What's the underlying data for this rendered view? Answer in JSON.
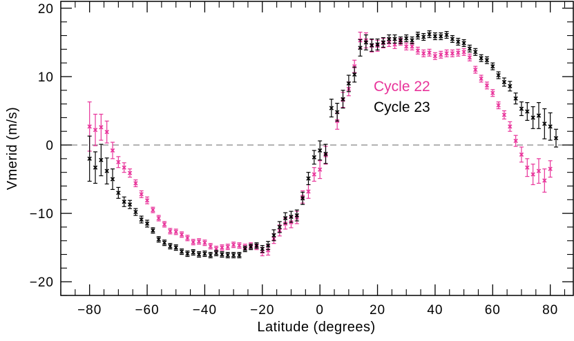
{
  "chart_data": {
    "type": "scatter",
    "xlabel": "Latitude  (degrees)",
    "ylabel": "Vmerid  (m/s)",
    "xlim": [
      -90,
      88
    ],
    "ylim": [
      -22,
      21
    ],
    "xticks": [
      -80,
      -60,
      -40,
      -20,
      0,
      20,
      40,
      60,
      80
    ],
    "yticks": [
      -20,
      -10,
      0,
      10,
      20
    ],
    "xtick_labels": [
      "−80",
      "−60",
      "−40",
      "−20",
      "0",
      "20",
      "40",
      "60",
      "80"
    ],
    "ytick_labels": [
      "−20",
      "−10",
      "0",
      "10",
      "20"
    ],
    "reference_line": {
      "y": 0,
      "style": "dashed"
    },
    "colors": {
      "cycle22": "#e8339a",
      "cycle23": "#000000",
      "axis": "#000000",
      "zero_line": "#777777"
    },
    "series": [
      {
        "name": "Cycle 22",
        "color": "#e8339a",
        "points": [
          [
            -80,
            2.7,
            3.6
          ],
          [
            -78,
            2.2,
            2.3
          ],
          [
            -76,
            2.6,
            1.9
          ],
          [
            -74,
            1.9,
            1.6
          ],
          [
            -72,
            -0.8,
            1.2
          ],
          [
            -70,
            -2.5,
            0.8
          ],
          [
            -68,
            -3.3,
            0.7
          ],
          [
            -66,
            -4.1,
            0.6
          ],
          [
            -64,
            -5.6,
            0.5
          ],
          [
            -62,
            -7.2,
            0.5
          ],
          [
            -60,
            -8.1,
            0.5
          ],
          [
            -58,
            -9.5,
            0.4
          ],
          [
            -56,
            -10.7,
            0.4
          ],
          [
            -54,
            -11.6,
            0.4
          ],
          [
            -52,
            -12.6,
            0.4
          ],
          [
            -50,
            -12.7,
            0.4
          ],
          [
            -48,
            -13.1,
            0.4
          ],
          [
            -46,
            -13.6,
            0.4
          ],
          [
            -44,
            -14.2,
            0.4
          ],
          [
            -42,
            -14.1,
            0.4
          ],
          [
            -40,
            -14.3,
            0.4
          ],
          [
            -38,
            -14.8,
            0.4
          ],
          [
            -36,
            -15.2,
            0.4
          ],
          [
            -34,
            -15.0,
            0.4
          ],
          [
            -32,
            -14.9,
            0.4
          ],
          [
            -30,
            -14.6,
            0.4
          ],
          [
            -28,
            -14.7,
            0.4
          ],
          [
            -26,
            -14.9,
            0.4
          ],
          [
            -24,
            -14.7,
            0.4
          ],
          [
            -22,
            -14.9,
            0.4
          ],
          [
            -20,
            -15.6,
            0.6
          ],
          [
            -18,
            -15.4,
            0.7
          ],
          [
            -16,
            -13.7,
            0.7
          ],
          [
            -14,
            -12.5,
            0.8
          ],
          [
            -12,
            -11.5,
            0.8
          ],
          [
            -10,
            -11.3,
            0.8
          ],
          [
            -8,
            -10.6,
            0.9
          ],
          [
            -6,
            -7.6,
            0.9
          ],
          [
            -4,
            -6.8,
            1.0
          ],
          [
            -2,
            -4.3,
            1.0
          ],
          [
            0,
            -3.6,
            1.3
          ],
          [
            2,
            -1.5,
            1.3
          ],
          [
            6,
            3.5,
            1.2
          ],
          [
            8,
            6.6,
            1.1
          ],
          [
            10,
            8.2,
            1.0
          ],
          [
            12,
            11.5,
            0.9
          ],
          [
            14,
            15.3,
            1.2
          ],
          [
            16,
            15.3,
            1.1
          ],
          [
            18,
            14.5,
            0.9
          ],
          [
            20,
            14.5,
            0.8
          ],
          [
            22,
            14.9,
            0.7
          ],
          [
            24,
            15.0,
            0.6
          ],
          [
            26,
            14.7,
            0.6
          ],
          [
            28,
            15.1,
            0.5
          ],
          [
            30,
            14.4,
            0.5
          ],
          [
            32,
            14.4,
            0.5
          ],
          [
            34,
            13.8,
            0.5
          ],
          [
            36,
            13.4,
            0.5
          ],
          [
            38,
            13.5,
            0.5
          ],
          [
            40,
            13.0,
            0.5
          ],
          [
            42,
            13.2,
            0.5
          ],
          [
            44,
            13.4,
            0.5
          ],
          [
            46,
            13.4,
            0.5
          ],
          [
            48,
            13.5,
            0.5
          ],
          [
            50,
            13.6,
            0.5
          ],
          [
            52,
            12.8,
            0.5
          ],
          [
            54,
            11.0,
            0.5
          ],
          [
            56,
            9.7,
            0.5
          ],
          [
            58,
            8.7,
            0.5
          ],
          [
            60,
            7.6,
            0.5
          ],
          [
            62,
            5.8,
            0.5
          ],
          [
            64,
            4.4,
            0.6
          ],
          [
            66,
            2.7,
            0.7
          ],
          [
            68,
            0.6,
            0.8
          ],
          [
            70,
            -1.4,
            1.1
          ],
          [
            72,
            -3.3,
            1.3
          ],
          [
            74,
            -4.3,
            1.5
          ],
          [
            76,
            -3.8,
            1.8
          ],
          [
            78,
            -5.2,
            1.7
          ],
          [
            80,
            -3.5,
            1.2
          ]
        ]
      },
      {
        "name": "Cycle 23",
        "color": "#000000",
        "points": [
          [
            -80,
            -2.0,
            3.3
          ],
          [
            -78,
            -3.3,
            2.3
          ],
          [
            -76,
            -2.2,
            2.3
          ],
          [
            -74,
            -3.8,
            1.9
          ],
          [
            -72,
            -5.0,
            1.5
          ],
          [
            -70,
            -7.0,
            0.8
          ],
          [
            -68,
            -8.3,
            0.7
          ],
          [
            -66,
            -8.7,
            0.6
          ],
          [
            -64,
            -9.8,
            0.5
          ],
          [
            -62,
            -10.9,
            0.5
          ],
          [
            -60,
            -11.5,
            0.5
          ],
          [
            -58,
            -12.5,
            0.4
          ],
          [
            -56,
            -13.8,
            0.4
          ],
          [
            -54,
            -14.3,
            0.4
          ],
          [
            -52,
            -14.8,
            0.4
          ],
          [
            -50,
            -15.0,
            0.4
          ],
          [
            -48,
            -15.6,
            0.4
          ],
          [
            -46,
            -15.9,
            0.4
          ],
          [
            -44,
            -15.7,
            0.4
          ],
          [
            -42,
            -16.0,
            0.4
          ],
          [
            -40,
            -15.9,
            0.4
          ],
          [
            -38,
            -16.1,
            0.4
          ],
          [
            -36,
            -15.8,
            0.4
          ],
          [
            -34,
            -16.0,
            0.4
          ],
          [
            -32,
            -16.1,
            0.4
          ],
          [
            -30,
            -16.1,
            0.4
          ],
          [
            -28,
            -16.1,
            0.4
          ],
          [
            -26,
            -15.2,
            0.4
          ],
          [
            -24,
            -14.9,
            0.4
          ],
          [
            -22,
            -14.7,
            0.4
          ],
          [
            -20,
            -15.2,
            0.5
          ],
          [
            -18,
            -14.7,
            0.6
          ],
          [
            -16,
            -13.2,
            0.8
          ],
          [
            -14,
            -12.0,
            0.8
          ],
          [
            -12,
            -10.7,
            0.8
          ],
          [
            -10,
            -10.5,
            0.8
          ],
          [
            -8,
            -10.3,
            0.8
          ],
          [
            -6,
            -7.8,
            0.9
          ],
          [
            -4,
            -4.9,
            0.9
          ],
          [
            -2,
            -1.8,
            1.0
          ],
          [
            0,
            -0.8,
            1.4
          ],
          [
            2,
            -1.3,
            1.4
          ],
          [
            4,
            5.4,
            1.3
          ],
          [
            6,
            4.8,
            1.3
          ],
          [
            8,
            6.7,
            1.3
          ],
          [
            10,
            9.0,
            1.2
          ],
          [
            12,
            10.3,
            1.1
          ],
          [
            14,
            14.2,
            1.2
          ],
          [
            16,
            15.0,
            1.1
          ],
          [
            18,
            14.6,
            0.9
          ],
          [
            20,
            14.7,
            0.8
          ],
          [
            22,
            15.0,
            0.7
          ],
          [
            24,
            15.5,
            0.6
          ],
          [
            26,
            15.5,
            0.6
          ],
          [
            28,
            15.3,
            0.5
          ],
          [
            30,
            15.6,
            0.5
          ],
          [
            32,
            15.3,
            0.5
          ],
          [
            34,
            16.0,
            0.5
          ],
          [
            36,
            15.8,
            0.5
          ],
          [
            38,
            16.2,
            0.5
          ],
          [
            40,
            15.9,
            0.5
          ],
          [
            42,
            15.9,
            0.5
          ],
          [
            44,
            16.1,
            0.5
          ],
          [
            46,
            15.5,
            0.5
          ],
          [
            48,
            15.1,
            0.5
          ],
          [
            50,
            14.9,
            0.5
          ],
          [
            52,
            14.1,
            0.5
          ],
          [
            54,
            13.6,
            0.5
          ],
          [
            56,
            12.7,
            0.5
          ],
          [
            58,
            12.4,
            0.5
          ],
          [
            60,
            11.5,
            0.5
          ],
          [
            62,
            10.2,
            0.5
          ],
          [
            64,
            9.2,
            0.6
          ],
          [
            66,
            8.6,
            0.7
          ],
          [
            68,
            6.8,
            0.8
          ],
          [
            70,
            5.3,
            1.0
          ],
          [
            72,
            4.9,
            1.3
          ],
          [
            74,
            4.0,
            1.6
          ],
          [
            76,
            4.3,
            1.9
          ],
          [
            78,
            3.1,
            2.2
          ],
          [
            80,
            2.7,
            2.0
          ],
          [
            82,
            1.0,
            1.3
          ]
        ]
      }
    ],
    "legend": {
      "position": "upper-right-inside",
      "entries": [
        "Cycle 22",
        "Cycle 23"
      ]
    }
  }
}
